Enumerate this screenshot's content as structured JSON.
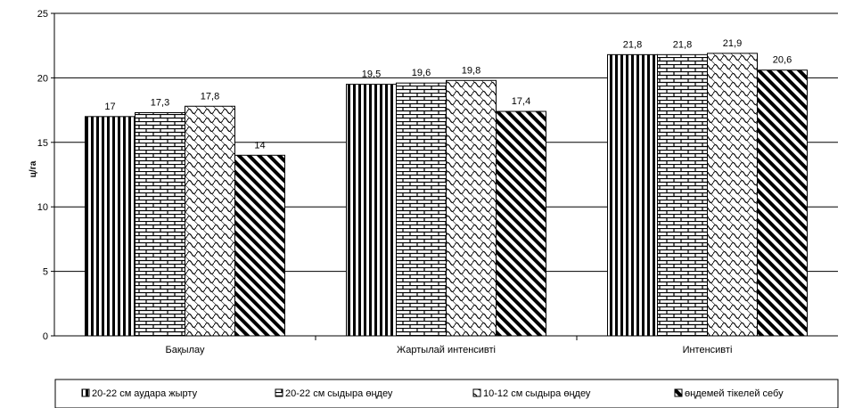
{
  "chart_data": {
    "type": "bar",
    "title": "",
    "xlabel": "",
    "ylabel": "ц/га",
    "ylim": [
      0,
      25
    ],
    "yticks": [
      0,
      5,
      10,
      15,
      20,
      25
    ],
    "grid": true,
    "legend_position": "bottom",
    "categories": [
      "Бақылау",
      "Жартылай интенсивті",
      "Интенсивті"
    ],
    "series": [
      {
        "name": "20-22 см аудара жырту",
        "values": [
          17,
          19.5,
          21.8
        ],
        "labels": [
          "17",
          "19,5",
          "21,8"
        ],
        "pattern": "vertical-stripes"
      },
      {
        "name": "20-22 см сыдыра өңдеу",
        "values": [
          17.3,
          19.6,
          21.8
        ],
        "labels": [
          "17,3",
          "19,6",
          "21,8"
        ],
        "pattern": "brick"
      },
      {
        "name": "10-12 см сыдыра өңдеу",
        "values": [
          17.8,
          19.8,
          21.9
        ],
        "labels": [
          "17,8",
          "19,8",
          "21,9"
        ],
        "pattern": "waves"
      },
      {
        "name": "өңдемей тікелей себу",
        "values": [
          14,
          17.4,
          20.6
        ],
        "labels": [
          "14",
          "17,4",
          "20,6"
        ],
        "pattern": "diagonal-stripes"
      }
    ]
  }
}
